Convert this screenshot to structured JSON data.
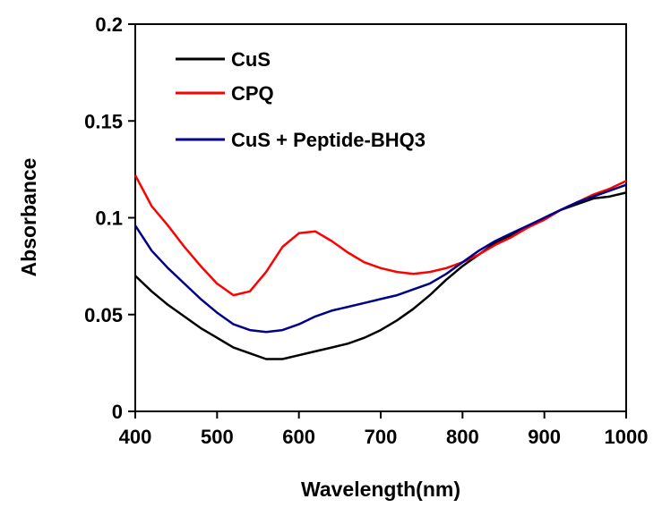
{
  "chart_data": {
    "type": "line",
    "xlabel": "Wavelength(nm)",
    "ylabel": "Absorbance",
    "xlim": [
      400,
      1000
    ],
    "ylim": [
      0,
      0.2
    ],
    "xticks": [
      400,
      500,
      600,
      700,
      800,
      900,
      1000
    ],
    "yticks": [
      0,
      0.05,
      0.1,
      0.15,
      0.2
    ],
    "xtick_labels": [
      "400",
      "500",
      "600",
      "700",
      "800",
      "900",
      "1000"
    ],
    "ytick_labels": [
      "0",
      "0.05",
      "0.1",
      "0.15",
      "0.2"
    ],
    "grid": false,
    "legend_position": "top-left",
    "series": [
      {
        "name": "CuS",
        "color": "#000000",
        "x": [
          400,
          420,
          440,
          460,
          480,
          500,
          520,
          540,
          560,
          580,
          600,
          620,
          640,
          660,
          680,
          700,
          720,
          740,
          760,
          780,
          800,
          820,
          840,
          860,
          880,
          900,
          920,
          940,
          960,
          980,
          1000
        ],
        "y": [
          0.07,
          0.062,
          0.055,
          0.049,
          0.043,
          0.038,
          0.033,
          0.03,
          0.027,
          0.027,
          0.029,
          0.031,
          0.033,
          0.035,
          0.038,
          0.042,
          0.047,
          0.053,
          0.06,
          0.068,
          0.075,
          0.081,
          0.087,
          0.091,
          0.095,
          0.1,
          0.104,
          0.107,
          0.11,
          0.111,
          0.113
        ]
      },
      {
        "name": "CPQ",
        "color": "#ff0000",
        "x": [
          400,
          420,
          440,
          460,
          480,
          500,
          520,
          540,
          560,
          580,
          600,
          620,
          640,
          660,
          680,
          700,
          720,
          740,
          760,
          780,
          800,
          820,
          840,
          860,
          880,
          900,
          920,
          940,
          960,
          980,
          1000
        ],
        "y": [
          0.122,
          0.106,
          0.096,
          0.085,
          0.075,
          0.066,
          0.06,
          0.062,
          0.072,
          0.085,
          0.092,
          0.093,
          0.088,
          0.082,
          0.077,
          0.074,
          0.072,
          0.071,
          0.072,
          0.074,
          0.077,
          0.081,
          0.086,
          0.09,
          0.095,
          0.099,
          0.104,
          0.108,
          0.112,
          0.115,
          0.119
        ]
      },
      {
        "name": "CuS + Peptide-BHQ3",
        "color": "#00008b",
        "x": [
          400,
          420,
          440,
          460,
          480,
          500,
          520,
          540,
          560,
          580,
          600,
          620,
          640,
          660,
          680,
          700,
          720,
          740,
          760,
          780,
          800,
          820,
          840,
          860,
          880,
          900,
          920,
          940,
          960,
          980,
          1000
        ],
        "y": [
          0.096,
          0.083,
          0.074,
          0.066,
          0.058,
          0.051,
          0.045,
          0.042,
          0.041,
          0.042,
          0.045,
          0.049,
          0.052,
          0.054,
          0.056,
          0.058,
          0.06,
          0.063,
          0.066,
          0.071,
          0.077,
          0.083,
          0.088,
          0.092,
          0.096,
          0.1,
          0.104,
          0.108,
          0.111,
          0.114,
          0.117
        ]
      }
    ]
  }
}
